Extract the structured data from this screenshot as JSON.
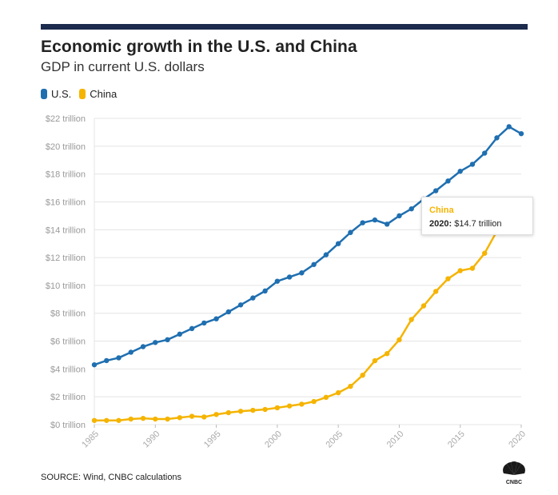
{
  "header": {
    "title": "Economic growth in the U.S. and China",
    "subtitle": "GDP in current U.S. dollars"
  },
  "source": "SOURCE: Wind, CNBC calculations",
  "logo": {
    "icon": "cnbc-peacock-logo",
    "text": "CNBC"
  },
  "colors": {
    "us": "#1f6fb0",
    "china": "#f5b400",
    "top_bar": "#1c2b4e",
    "grid": "#e4e4e4"
  },
  "legend": [
    {
      "label": "U.S.",
      "color": "#1f6fb0"
    },
    {
      "label": "China",
      "color": "#f5b400"
    }
  ],
  "tooltip": {
    "series": "China",
    "year_label": "2020:",
    "value_label": "$14.7 trillion"
  },
  "chart_data": {
    "type": "line",
    "title": "Economic growth in the U.S. and China",
    "subtitle": "GDP in current U.S. dollars",
    "xlabel": "",
    "ylabel": "",
    "x": [
      1985,
      1986,
      1987,
      1988,
      1989,
      1990,
      1991,
      1992,
      1993,
      1994,
      1995,
      1996,
      1997,
      1998,
      1999,
      2000,
      2001,
      2002,
      2003,
      2004,
      2005,
      2006,
      2007,
      2008,
      2009,
      2010,
      2011,
      2012,
      2013,
      2014,
      2015,
      2016,
      2017,
      2018,
      2019,
      2020
    ],
    "xlim": [
      1985,
      2020
    ],
    "ylim": [
      0,
      22
    ],
    "x_ticks": [
      "1985",
      "1990",
      "1995",
      "2000",
      "2005",
      "2010",
      "2015",
      "2020"
    ],
    "x_tick_values": [
      1985,
      1990,
      1995,
      2000,
      2005,
      2010,
      2015,
      2020
    ],
    "y_ticks": [
      "$0 trillion",
      "$2 trillion",
      "$4 trillion",
      "$6 trillion",
      "$8 trillion",
      "$10 trillion",
      "$12 trillion",
      "$14 trillion",
      "$16 trillion",
      "$18 trillion",
      "$20 trillion",
      "$22 trillion"
    ],
    "y_tick_values": [
      0,
      2,
      4,
      6,
      8,
      10,
      12,
      14,
      16,
      18,
      20,
      22
    ],
    "grid": true,
    "legend_position": "top-left",
    "series": [
      {
        "name": "U.S.",
        "color": "#1f6fb0",
        "values": [
          4.3,
          4.6,
          4.8,
          5.2,
          5.6,
          5.9,
          6.1,
          6.5,
          6.9,
          7.3,
          7.6,
          8.1,
          8.6,
          9.1,
          9.6,
          10.3,
          10.6,
          10.9,
          11.5,
          12.2,
          13.0,
          13.8,
          14.5,
          14.7,
          14.4,
          15.0,
          15.5,
          16.2,
          16.8,
          17.5,
          18.2,
          18.7,
          19.5,
          20.6,
          21.4,
          20.9
        ]
      },
      {
        "name": "China",
        "color": "#f5b400",
        "values": [
          0.3,
          0.3,
          0.3,
          0.4,
          0.45,
          0.4,
          0.4,
          0.5,
          0.6,
          0.55,
          0.73,
          0.86,
          0.96,
          1.03,
          1.09,
          1.21,
          1.34,
          1.47,
          1.66,
          1.96,
          2.29,
          2.75,
          3.55,
          4.59,
          5.1,
          6.09,
          7.55,
          8.53,
          9.57,
          10.48,
          11.06,
          11.23,
          12.31,
          13.89,
          14.28,
          14.72
        ]
      }
    ],
    "annotations": [
      {
        "series": "China",
        "x": 2020,
        "text": "2020: $14.7 trillion"
      }
    ]
  }
}
